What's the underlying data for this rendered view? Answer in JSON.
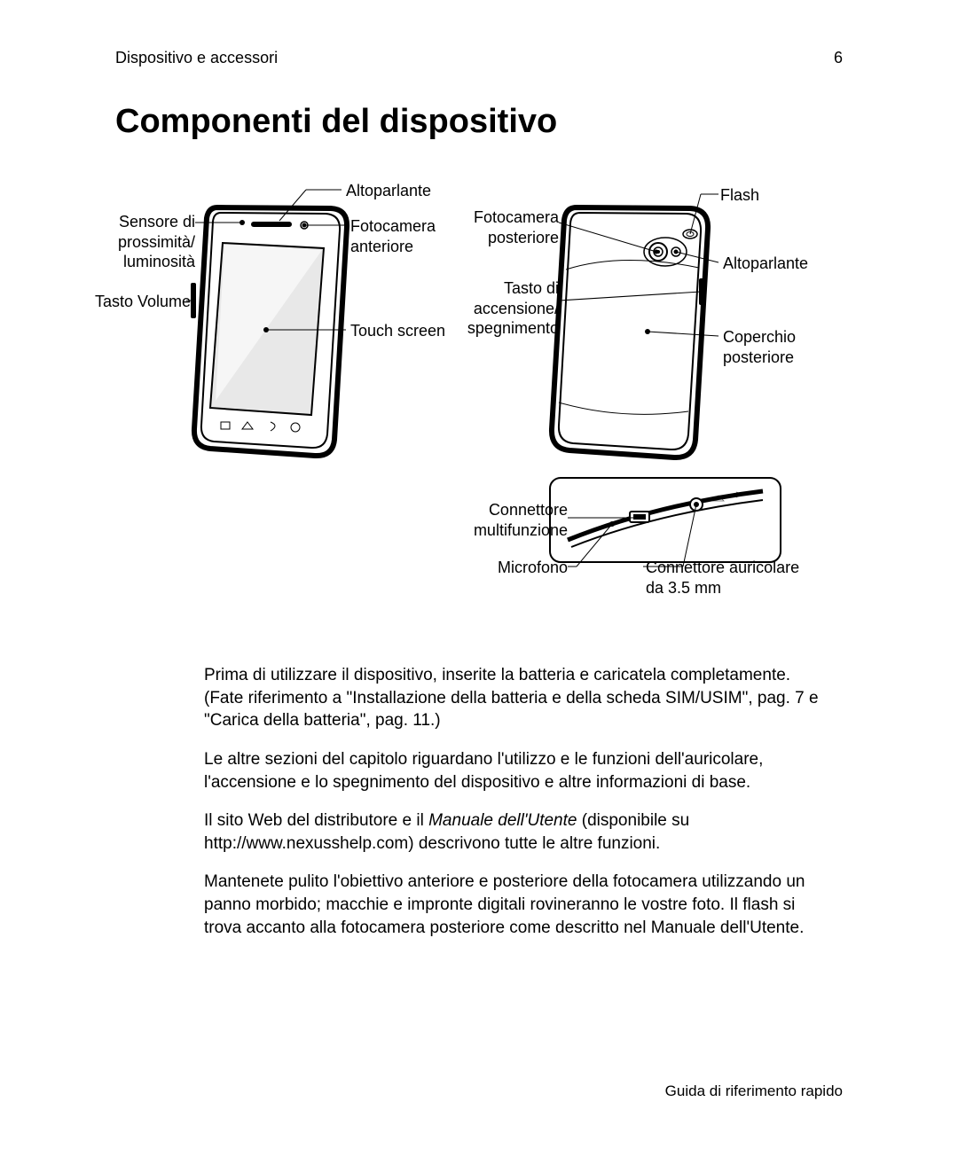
{
  "header": {
    "section": "Dispositivo e accessori",
    "page_number": "6"
  },
  "title": "Componenti del dispositivo",
  "diagram": {
    "front_labels_left": {
      "sensor": "Sensore di\nprossimità/\nluminosità",
      "volume": "Tasto Volume"
    },
    "front_labels_right": {
      "speaker": "Altoparlante",
      "front_cam": "Fotocamera\nanteriore",
      "touch": "Touch screen"
    },
    "back_labels_left": {
      "rear_cam": "Fotocamera\nposteriore",
      "power": "Tasto di\naccensione/\nspegnimento",
      "multi": "Connettore\nmultifunzione",
      "mic": "Microfono"
    },
    "back_labels_right": {
      "flash": "Flash",
      "speaker": "Altoparlante",
      "cover": "Coperchio\nposteriore",
      "jack": "Connettore auricolare\nda 3.5 mm"
    },
    "colors": {
      "stroke": "#000000",
      "fill": "#ffffff",
      "shade": "#e8e8e8"
    }
  },
  "paragraphs": {
    "p1": "Prima di utilizzare il dispositivo, inserite la batteria e caricatela completamente. (Fate riferimento a \"Installazione della batteria e della scheda SIM/USIM\", pag. 7 e \"Carica della batteria\", pag. 11.)",
    "p2": "Le altre sezioni del capitolo riguardano l'utilizzo e le funzioni dell'auricolare, l'accensione e lo spegnimento del dispositivo e altre informazioni di base.",
    "p3a": "Il sito Web del distributore e il ",
    "p3b": "Manuale dell'Utente",
    "p3c": " (disponibile su http://www.nexusshelp.com) descrivono tutte le altre funzioni.",
    "p4": "Mantenete pulito l'obiettivo anteriore e posteriore della fotocamera utilizzando un panno morbido; macchie e impronte digitali rovineranno le vostre foto. Il flash si trova accanto alla fotocamera posteriore come descritto nel Manuale dell'Utente."
  },
  "footer": "Guida di riferimento rapido"
}
